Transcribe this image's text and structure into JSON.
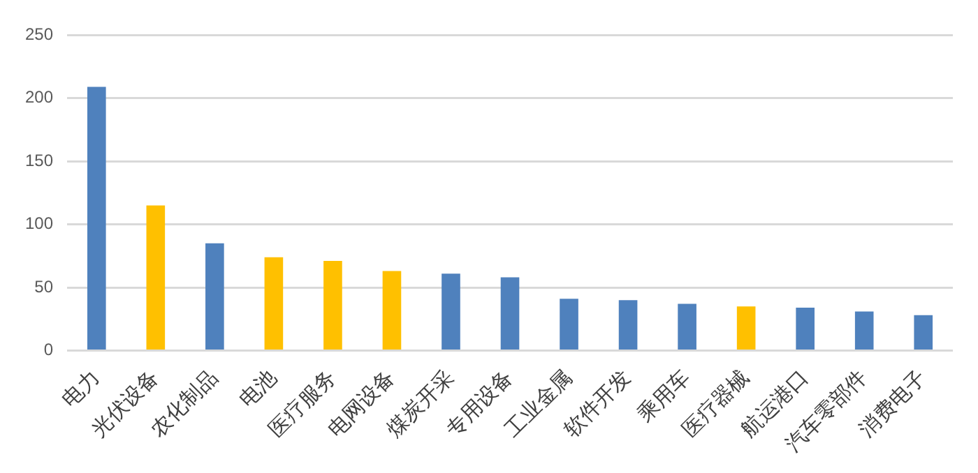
{
  "chart_data": {
    "type": "bar",
    "categories": [
      "电力",
      "光伏设备",
      "农化制品",
      "电池",
      "医疗服务",
      "电网设备",
      "煤炭开采",
      "专用设备",
      "工业金属",
      "软件开发",
      "乘用车",
      "医疗器械",
      "航运港口",
      "汽车零部件",
      "消费电子"
    ],
    "values": [
      209,
      115,
      85,
      74,
      71,
      63,
      61,
      58,
      41,
      40,
      37,
      35,
      34,
      31,
      28
    ],
    "colors": [
      "#4f81bd",
      "#ffc000",
      "#4f81bd",
      "#ffc000",
      "#ffc000",
      "#ffc000",
      "#4f81bd",
      "#4f81bd",
      "#4f81bd",
      "#4f81bd",
      "#4f81bd",
      "#ffc000",
      "#4f81bd",
      "#4f81bd",
      "#4f81bd"
    ],
    "ylim": [
      0,
      250
    ],
    "yticks": [
      0,
      50,
      100,
      150,
      200,
      250
    ],
    "grid": "y",
    "legend": false
  }
}
